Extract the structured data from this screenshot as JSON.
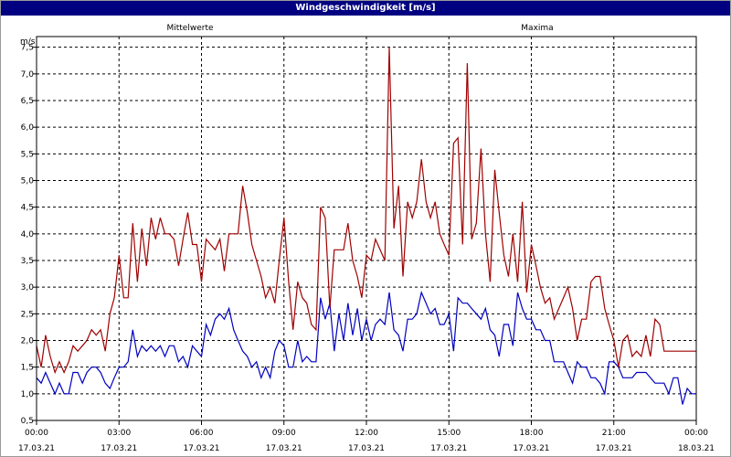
{
  "chart_data": {
    "type": "line",
    "title": "Windgeschwindigkeit [m/s]",
    "ylabel": "m/s",
    "ylim": [
      0.5,
      7.7
    ],
    "yticks": [
      "0,5",
      "1,0",
      "1,5",
      "2,0",
      "2,5",
      "3,0",
      "3,5",
      "4,0",
      "4,5",
      "5,0",
      "5,5",
      "6,0",
      "6,5",
      "7,0",
      "7,5"
    ],
    "yticks_values": [
      0.5,
      1.0,
      1.5,
      2.0,
      2.5,
      3.0,
      3.5,
      4.0,
      4.5,
      5.0,
      5.5,
      6.0,
      6.5,
      7.0,
      7.5
    ],
    "xlim": [
      0,
      24
    ],
    "xticks": [
      {
        "hour": 0,
        "time": "00:00",
        "date": "17.03.21"
      },
      {
        "hour": 3,
        "time": "03:00",
        "date": "17.03.21"
      },
      {
        "hour": 6,
        "time": "06:00",
        "date": "17.03.21"
      },
      {
        "hour": 9,
        "time": "09:00",
        "date": "17.03.21"
      },
      {
        "hour": 12,
        "time": "12:00",
        "date": "17.03.21"
      },
      {
        "hour": 15,
        "time": "15:00",
        "date": "17.03.21"
      },
      {
        "hour": 18,
        "time": "18:00",
        "date": "17.03.21"
      },
      {
        "hour": 21,
        "time": "21:00",
        "date": "17.03.21"
      },
      {
        "hour": 24,
        "time": "00:00",
        "date": "18.03.21"
      }
    ],
    "grid": true,
    "series": [
      {
        "name": "Mittelwerte",
        "color": "#0000c0",
        "x": [
          0.0,
          0.17,
          0.33,
          0.5,
          0.67,
          0.83,
          1.0,
          1.17,
          1.33,
          1.5,
          1.67,
          1.83,
          2.0,
          2.17,
          2.33,
          2.5,
          2.67,
          2.83,
          3.0,
          3.17,
          3.33,
          3.5,
          3.67,
          3.83,
          4.0,
          4.17,
          4.33,
          4.5,
          4.67,
          4.83,
          5.0,
          5.17,
          5.33,
          5.5,
          5.67,
          5.83,
          6.0,
          6.17,
          6.33,
          6.5,
          6.67,
          6.83,
          7.0,
          7.17,
          7.33,
          7.5,
          7.67,
          7.83,
          8.0,
          8.17,
          8.33,
          8.5,
          8.67,
          8.83,
          9.0,
          9.17,
          9.33,
          9.5,
          9.67,
          9.83,
          10.0,
          10.17,
          10.33,
          10.5,
          10.67,
          10.83,
          11.0,
          11.17,
          11.33,
          11.5,
          11.67,
          11.83,
          12.0,
          12.17,
          12.33,
          12.5,
          12.67,
          12.83,
          13.0,
          13.17,
          13.33,
          13.5,
          13.67,
          13.83,
          14.0,
          14.17,
          14.33,
          14.5,
          14.67,
          14.83,
          15.0,
          15.17,
          15.33,
          15.5,
          15.67,
          15.83,
          16.0,
          16.17,
          16.33,
          16.5,
          16.67,
          16.83,
          17.0,
          17.17,
          17.33,
          17.5,
          17.67,
          17.83,
          18.0,
          18.17,
          18.33,
          18.5,
          18.67,
          18.83,
          19.0,
          19.17,
          19.33,
          19.5,
          19.67,
          19.83,
          20.0,
          20.17,
          20.33,
          20.5,
          20.67,
          20.83,
          21.0,
          21.17,
          21.33,
          21.5,
          21.67,
          21.83,
          22.0,
          22.17,
          22.33,
          22.5,
          22.67,
          22.83,
          23.0,
          23.17,
          23.33,
          23.5,
          23.67,
          23.83,
          24.0
        ],
        "values": [
          1.3,
          1.2,
          1.4,
          1.2,
          1.0,
          1.2,
          1.0,
          1.0,
          1.4,
          1.4,
          1.2,
          1.4,
          1.5,
          1.5,
          1.4,
          1.2,
          1.1,
          1.3,
          1.5,
          1.5,
          1.6,
          2.2,
          1.7,
          1.9,
          1.8,
          1.9,
          1.8,
          1.9,
          1.7,
          1.9,
          1.9,
          1.6,
          1.7,
          1.5,
          1.9,
          1.8,
          1.7,
          2.3,
          2.1,
          2.4,
          2.5,
          2.4,
          2.6,
          2.2,
          2.0,
          1.8,
          1.7,
          1.5,
          1.6,
          1.3,
          1.5,
          1.3,
          1.8,
          2.0,
          1.9,
          1.5,
          1.5,
          2.0,
          1.6,
          1.7,
          1.6,
          1.6,
          2.8,
          2.4,
          2.7,
          1.8,
          2.5,
          2.0,
          2.7,
          2.1,
          2.6,
          2.0,
          2.4,
          2.0,
          2.3,
          2.4,
          2.3,
          2.9,
          2.2,
          2.1,
          1.8,
          2.4,
          2.4,
          2.5,
          2.9,
          2.7,
          2.5,
          2.6,
          2.3,
          2.3,
          2.5,
          1.8,
          2.8,
          2.7,
          2.7,
          2.6,
          2.5,
          2.4,
          2.6,
          2.2,
          2.1,
          1.7,
          2.3,
          2.3,
          1.9,
          2.9,
          2.6,
          2.4,
          2.4,
          2.2,
          2.2,
          2.0,
          2.0,
          1.6,
          1.6,
          1.6,
          1.4,
          1.2,
          1.6,
          1.5,
          1.5,
          1.3,
          1.3,
          1.2,
          1.0,
          1.6,
          1.6,
          1.5,
          1.3,
          1.3,
          1.3,
          1.4,
          1.4,
          1.4,
          1.3,
          1.2,
          1.2,
          1.2,
          1.0,
          1.3,
          1.3,
          0.8,
          1.1,
          1.0,
          1.0
        ]
      },
      {
        "name": "Maxima",
        "color": "#a00000",
        "x": [
          0.0,
          0.17,
          0.33,
          0.5,
          0.67,
          0.83,
          1.0,
          1.17,
          1.33,
          1.5,
          1.67,
          1.83,
          2.0,
          2.17,
          2.33,
          2.5,
          2.67,
          2.83,
          3.0,
          3.17,
          3.33,
          3.5,
          3.67,
          3.83,
          4.0,
          4.17,
          4.33,
          4.5,
          4.67,
          4.83,
          5.0,
          5.17,
          5.33,
          5.5,
          5.67,
          5.83,
          6.0,
          6.17,
          6.33,
          6.5,
          6.67,
          6.83,
          7.0,
          7.17,
          7.33,
          7.5,
          7.67,
          7.83,
          8.0,
          8.17,
          8.33,
          8.5,
          8.67,
          8.83,
          9.0,
          9.17,
          9.33,
          9.5,
          9.67,
          9.83,
          10.0,
          10.17,
          10.33,
          10.5,
          10.67,
          10.83,
          11.0,
          11.17,
          11.33,
          11.5,
          11.67,
          11.83,
          12.0,
          12.17,
          12.33,
          12.5,
          12.67,
          12.83,
          13.0,
          13.17,
          13.33,
          13.5,
          13.67,
          13.83,
          14.0,
          14.17,
          14.33,
          14.5,
          14.67,
          14.83,
          15.0,
          15.17,
          15.33,
          15.5,
          15.67,
          15.83,
          16.0,
          16.17,
          16.33,
          16.5,
          16.67,
          16.83,
          17.0,
          17.17,
          17.33,
          17.5,
          17.67,
          17.83,
          18.0,
          18.17,
          18.33,
          18.5,
          18.67,
          18.83,
          19.0,
          19.17,
          19.33,
          19.5,
          19.67,
          19.83,
          20.0,
          20.17,
          20.33,
          20.5,
          20.67,
          20.83,
          21.0,
          21.17,
          21.33,
          21.5,
          21.67,
          21.83,
          22.0,
          22.17,
          22.33,
          22.5,
          22.67,
          22.83,
          23.0,
          23.17,
          23.33,
          23.5,
          23.67,
          23.83,
          24.0
        ],
        "values": [
          1.9,
          1.5,
          2.1,
          1.7,
          1.4,
          1.6,
          1.4,
          1.6,
          1.9,
          1.8,
          1.9,
          2.0,
          2.2,
          2.1,
          2.2,
          1.8,
          2.5,
          2.8,
          3.6,
          2.8,
          2.8,
          4.2,
          3.1,
          4.1,
          3.4,
          4.3,
          3.9,
          4.3,
          4.0,
          4.0,
          3.9,
          3.4,
          3.9,
          4.4,
          3.8,
          3.8,
          3.1,
          3.9,
          3.8,
          3.7,
          3.9,
          3.3,
          4.0,
          4.0,
          4.0,
          4.9,
          4.4,
          3.8,
          3.5,
          3.2,
          2.8,
          3.0,
          2.7,
          3.5,
          4.3,
          3.1,
          2.2,
          3.1,
          2.8,
          2.7,
          2.3,
          2.2,
          4.5,
          4.3,
          2.6,
          3.7,
          3.7,
          3.7,
          4.2,
          3.5,
          3.2,
          2.8,
          3.6,
          3.5,
          3.9,
          3.7,
          3.5,
          7.5,
          4.1,
          4.9,
          3.2,
          4.6,
          4.3,
          4.6,
          5.4,
          4.6,
          4.3,
          4.6,
          4.0,
          3.8,
          3.6,
          5.7,
          5.8,
          3.8,
          7.2,
          3.9,
          4.2,
          5.6,
          4.0,
          3.1,
          5.2,
          4.4,
          3.6,
          3.2,
          4.0,
          3.1,
          4.6,
          2.9,
          3.8,
          3.4,
          3.0,
          2.7,
          2.8,
          2.4,
          2.6,
          2.8,
          3.0,
          2.6,
          2.0,
          2.4,
          2.4,
          3.1,
          3.2,
          3.2,
          2.6,
          2.3,
          2.0,
          1.5,
          2.0,
          2.1,
          1.7,
          1.8,
          1.7,
          2.1,
          1.7,
          2.4,
          2.3,
          1.8,
          1.8,
          1.8,
          1.8,
          1.8,
          1.8,
          1.8,
          1.8
        ]
      }
    ]
  }
}
